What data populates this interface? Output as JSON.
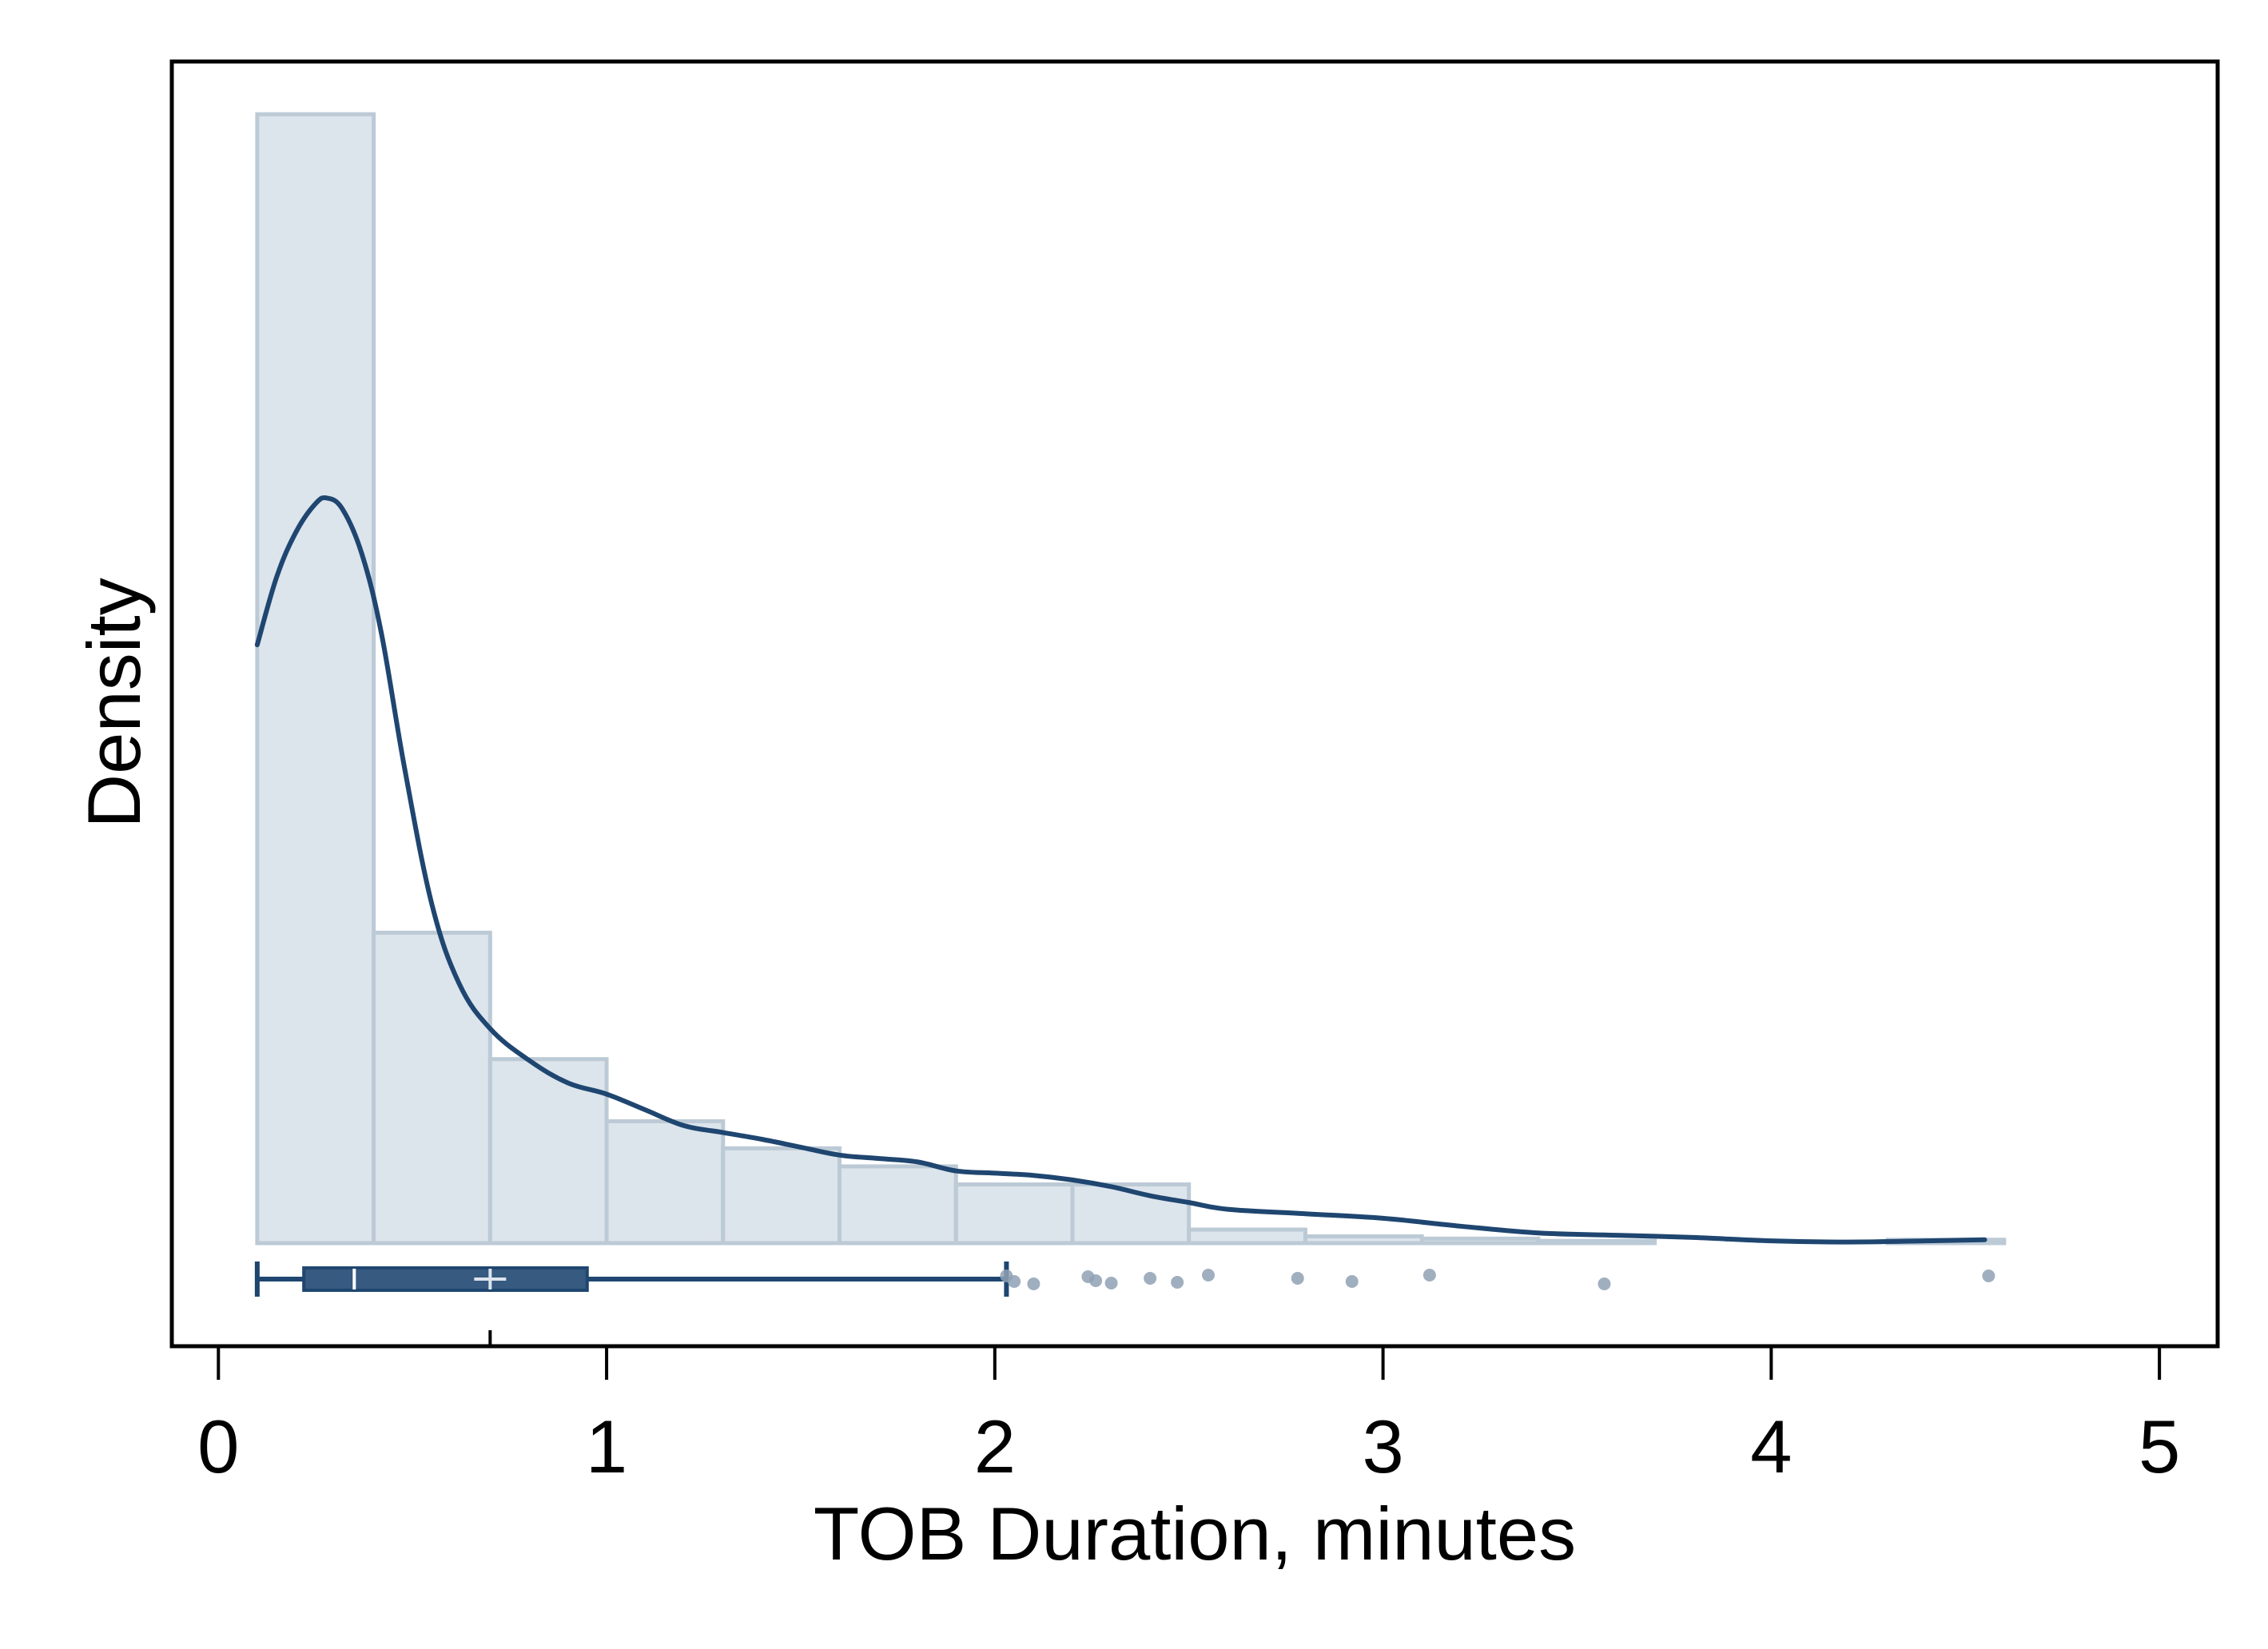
{
  "chart_data": {
    "type": "histogram",
    "xlabel": "TOB Duration, minutes",
    "ylabel": "Density",
    "xlim": [
      -0.12,
      5.15
    ],
    "ylim": [
      0,
      1
    ],
    "x_ticks": [
      0,
      1,
      2,
      3,
      4,
      5
    ],
    "x_tick_labels": [
      "0",
      "1",
      "2",
      "3",
      "4",
      "5"
    ],
    "y_ticks_shown": false,
    "grid": false,
    "colors": {
      "bar_fill": "#dce4ec",
      "bar_stroke": "#bccad6",
      "kde_line": "#1f4670",
      "boxplot": "#365a80",
      "outlier": "#8fa1b4"
    },
    "histogram": {
      "bin_edges": [
        0.1,
        0.4,
        0.7,
        1.0,
        1.3,
        1.6,
        1.9,
        2.2,
        2.5,
        2.8,
        3.1,
        3.4,
        3.7,
        4.0,
        4.3,
        4.6
      ],
      "density": [
        1.0,
        0.275,
        0.163,
        0.108,
        0.084,
        0.068,
        0.052,
        0.052,
        0.012,
        0.006,
        0.004,
        0.002,
        0.0,
        0.0,
        0.003
      ]
    },
    "kde": {
      "x": [
        0.1,
        0.15,
        0.2,
        0.25,
        0.28,
        0.32,
        0.37,
        0.42,
        0.48,
        0.55,
        0.62,
        0.7,
        0.8,
        0.9,
        1.0,
        1.1,
        1.2,
        1.3,
        1.4,
        1.5,
        1.6,
        1.7,
        1.8,
        1.9,
        2.0,
        2.1,
        2.2,
        2.3,
        2.4,
        2.5,
        2.6,
        2.8,
        3.0,
        3.2,
        3.4,
        3.6,
        3.8,
        4.0,
        4.2,
        4.4,
        4.55
      ],
      "y": [
        0.53,
        0.59,
        0.63,
        0.655,
        0.66,
        0.65,
        0.61,
        0.54,
        0.42,
        0.3,
        0.23,
        0.19,
        0.162,
        0.142,
        0.132,
        0.118,
        0.104,
        0.098,
        0.092,
        0.085,
        0.078,
        0.075,
        0.072,
        0.064,
        0.062,
        0.06,
        0.056,
        0.05,
        0.042,
        0.036,
        0.03,
        0.026,
        0.022,
        0.015,
        0.009,
        0.007,
        0.005,
        0.002,
        0.001,
        0.002,
        0.003
      ]
    },
    "boxplot": {
      "whisker_low": 0.1,
      "q1": 0.22,
      "median": 0.35,
      "mean": 0.7,
      "q3": 0.95,
      "whisker_high": 2.03,
      "outliers": [
        2.03,
        2.05,
        2.1,
        2.24,
        2.26,
        2.3,
        2.4,
        2.47,
        2.55,
        2.78,
        2.92,
        3.12,
        3.57,
        4.56
      ]
    }
  }
}
